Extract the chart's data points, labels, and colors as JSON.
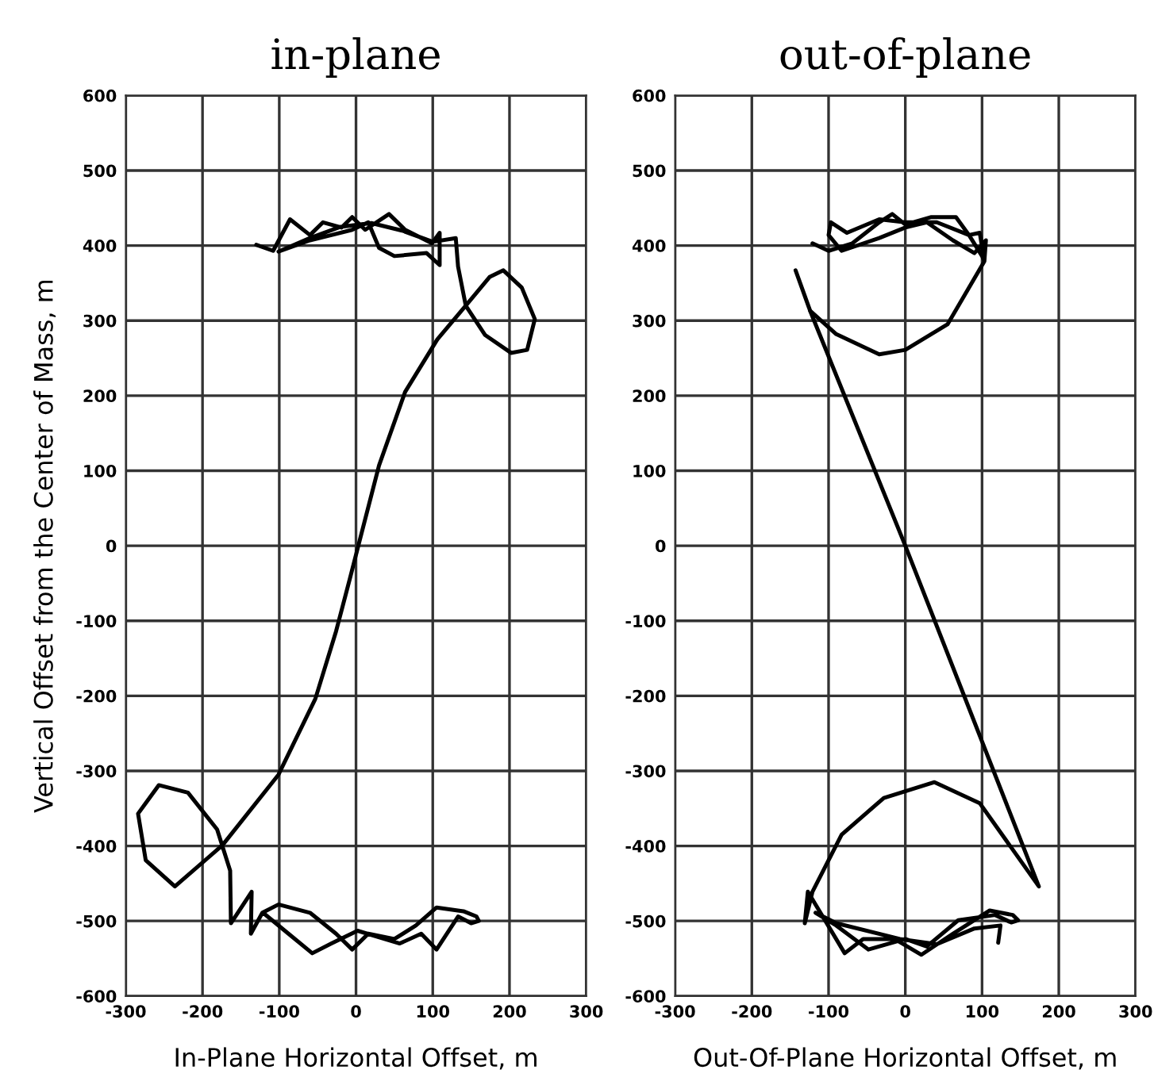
{
  "chart_data": [
    {
      "type": "line",
      "title": "in-plane",
      "xlabel": "In-Plane Horizontal Offset, m",
      "ylabel": "Vertical Offset from the Center of Mass, m",
      "xlim": [
        -300,
        300
      ],
      "ylim": [
        -600,
        600
      ],
      "xticks": [
        -300,
        -200,
        -100,
        0,
        100,
        200,
        300
      ],
      "yticks": [
        -600,
        -500,
        -400,
        -300,
        -200,
        -100,
        0,
        100,
        200,
        300,
        400,
        500,
        600
      ],
      "grid": true,
      "series": [
        {
          "color": "#000000",
          "x": [
            -130,
            -108,
            -86,
            -60,
            -43,
            -19,
            -5,
            12,
            43,
            64,
            99,
            109,
            109,
            92,
            50,
            30,
            16,
            -5,
            -32,
            -60,
            -101,
            -60,
            -20,
            20,
            60,
            100,
            130,
            133,
            143,
            174,
            192,
            216,
            233,
            223,
            202,
            168,
            143,
            106,
            64,
            30,
            2,
            -8,
            -26,
            -53,
            -101,
            -174,
            -236,
            -274,
            -284,
            -257,
            -219,
            -181,
            -164,
            -163,
            -136,
            -137,
            -122,
            -101,
            -60,
            -26,
            -5,
            16,
            50,
            78,
            105,
            140,
            157,
            160,
            150,
            133,
            105,
            85,
            57,
            2,
            -32,
            -57,
            -88,
            -120
          ],
          "values": [
            401,
            393,
            435,
            414,
            431,
            424,
            438,
            421,
            442,
            421,
            403,
            417,
            374,
            390,
            386,
            397,
            431,
            421,
            414,
            407,
            392,
            410,
            425,
            430,
            420,
            405,
            410,
            372,
            320,
            358,
            367,
            344,
            302,
            261,
            257,
            281,
            320,
            275,
            205,
            107,
            -4,
            -44,
            -114,
            -204,
            -305,
            -399,
            -454,
            -419,
            -357,
            -319,
            -329,
            -378,
            -433,
            -503,
            -461,
            -517,
            -489,
            -478,
            -489,
            -517,
            -538,
            -517,
            -524,
            -506,
            -482,
            -487,
            -494,
            -500,
            -503,
            -494,
            -538,
            -517,
            -530,
            -513,
            -530,
            -543,
            -517,
            -490
          ]
        }
      ]
    },
    {
      "type": "line",
      "title": "out-of-plane",
      "xlabel": "Out-Of-Plane Horizontal Offset, m",
      "xlim": [
        -300,
        300
      ],
      "ylim": [
        -600,
        600
      ],
      "xticks": [
        -300,
        -200,
        -100,
        0,
        100,
        200,
        300
      ],
      "yticks": [
        -600,
        -500,
        -400,
        -300,
        -200,
        -100,
        0,
        100,
        200,
        300,
        400,
        500,
        600
      ],
      "grid": true,
      "series": [
        {
          "color": "#000000",
          "x": [
            -121,
            -100,
            -69,
            -34,
            -17,
            0,
            34,
            66,
            83,
            97,
            103,
            105,
            90,
            62,
            28,
            0,
            -34,
            -83,
            -100,
            -97,
            -76,
            -34,
            0,
            41,
            83,
            100,
            103,
            55,
            0,
            -34,
            -90,
            -124
          ],
          "values": [
            403,
            393,
            403,
            431,
            442,
            428,
            438,
            438,
            414,
            417,
            379,
            407,
            390,
            407,
            431,
            424,
            410,
            393,
            414,
            431,
            417,
            435,
            431,
            431,
            414,
            386,
            379,
            295,
            261,
            255,
            282,
            313
          ]
        },
        {
          "color": "#000000",
          "x": [
            -143,
            -124,
            0,
            174,
            131,
            97,
            38,
            -28,
            -83,
            -114,
            -121,
            -131,
            -127,
            -79,
            -55,
            -14,
            21,
            62,
            110,
            140,
            147,
            138,
            117,
            69,
            28,
            0,
            -48,
            -90,
            -117,
            -90,
            -7,
            41,
            90,
            124,
            121
          ],
          "values": [
            367,
            313,
            0,
            -454,
            -392,
            -343,
            -315,
            -336,
            -385,
            -447,
            -461,
            -503,
            -461,
            -543,
            -524,
            -524,
            -545,
            -517,
            -486,
            -492,
            -499,
            -502,
            -492,
            -499,
            -534,
            -524,
            -538,
            -506,
            -489,
            -503,
            -524,
            -531,
            -510,
            -506,
            -529
          ]
        }
      ]
    }
  ]
}
